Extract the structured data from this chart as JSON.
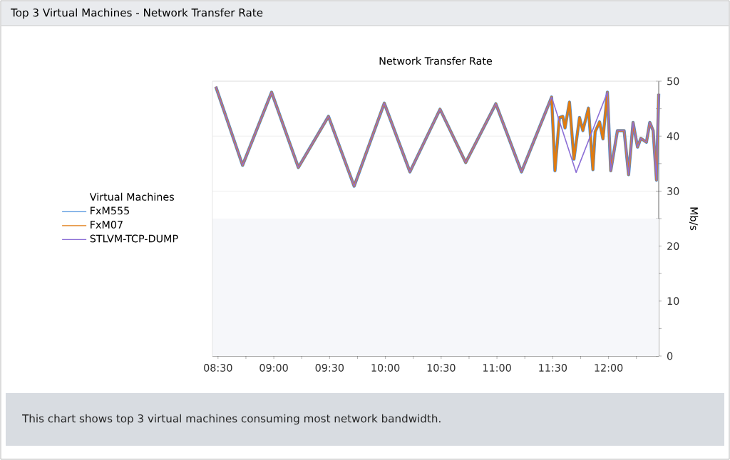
{
  "chart_data": {
    "type": "line",
    "title": "Top 3 Virtual Machines - Network Transfer Rate",
    "subtitle": "Network Transfer Rate",
    "ylabel": "Mb/s",
    "legend_title": "Virtual Machines",
    "legend": "left",
    "grid": "y",
    "annotations": [
      "This chart shows top 3 virtual machines consuming most network bandwidth."
    ],
    "xlim": [
      8.45,
      12.45
    ],
    "xticks": [
      {
        "value": 8.5,
        "label": "08:30"
      },
      {
        "value": 8.75,
        "label": null
      },
      {
        "value": 9,
        "label": "09:00"
      },
      {
        "value": 9.25,
        "label": null
      },
      {
        "value": 9.5,
        "label": "09:30"
      },
      {
        "value": 9.75,
        "label": null
      },
      {
        "value": 10,
        "label": "10:00"
      },
      {
        "value": 10.25,
        "label": null
      },
      {
        "value": 10.5,
        "label": "10:30"
      },
      {
        "value": 10.75,
        "label": null
      },
      {
        "value": 11,
        "label": "11:00"
      },
      {
        "value": 11.25,
        "label": null
      },
      {
        "value": 11.5,
        "label": "11:30"
      },
      {
        "value": 11.75,
        "label": null
      },
      {
        "value": 12,
        "label": "12:00"
      },
      {
        "value": 12.25,
        "label": null
      }
    ],
    "ylim": [
      0,
      50
    ],
    "yticks": [
      0,
      {
        "value": 5,
        "label": null
      },
      10,
      {
        "value": 15,
        "label": null
      },
      20,
      {
        "value": 25,
        "label": null
      },
      30,
      {
        "value": 35,
        "label": null
      },
      40,
      {
        "value": 45,
        "label": null
      },
      50
    ],
    "bands": [
      {
        "axis": "y",
        "from": 0,
        "to": 25,
        "color": "#f6f7fa"
      }
    ],
    "series": [
      {
        "name": "FxM555",
        "color": "#4a8fdc",
        "x": [
          8.48,
          8.72,
          8.98,
          9.22,
          9.49,
          9.72,
          9.99,
          10.22,
          10.49,
          10.72,
          10.99,
          11.22,
          11.49,
          11.52,
          11.56,
          11.59,
          11.61,
          11.65,
          11.69,
          11.74,
          11.77,
          11.82,
          11.86,
          11.88,
          11.92,
          11.95,
          11.99,
          12.02,
          12.08,
          12.14,
          12.18,
          12.22,
          12.26,
          12.29,
          12.34,
          12.37,
          12.4,
          12.43,
          12.45
        ],
        "values": [
          49,
          34.7,
          48,
          34.3,
          43.6,
          30.9,
          46,
          33.5,
          44.9,
          35.2,
          45.9,
          33.5,
          47.1,
          33.7,
          43.4,
          43.6,
          41.5,
          46.2,
          35.8,
          43.4,
          41,
          45.1,
          33.9,
          40.8,
          42.6,
          39.5,
          48,
          33.7,
          41,
          41,
          33,
          42.5,
          38,
          39.6,
          38.9,
          42.5,
          41,
          32,
          47.7
        ]
      },
      {
        "name": "FxM07",
        "color": "#e07b10",
        "x": [
          8.48,
          8.72,
          8.98,
          9.22,
          9.49,
          9.72,
          9.99,
          10.22,
          10.49,
          10.72,
          10.99,
          11.22,
          11.49,
          11.52,
          11.56,
          11.59,
          11.61,
          11.65,
          11.69,
          11.74,
          11.77,
          11.82,
          11.86,
          11.88,
          11.92,
          11.95,
          11.99,
          12.02,
          12.08,
          12.14,
          12.18,
          12.22,
          12.26,
          12.29,
          12.34,
          12.37,
          12.4,
          12.43,
          12.45
        ],
        "values": [
          49,
          34.7,
          48,
          34.3,
          43.6,
          30.9,
          46,
          33.5,
          44.9,
          35.2,
          45.9,
          33.5,
          47.1,
          33.7,
          43.4,
          43.6,
          41.5,
          46.2,
          35.8,
          43.4,
          41,
          45.1,
          33.9,
          40.8,
          42.6,
          39.5,
          48,
          33.7,
          41,
          41,
          33,
          42.5,
          38,
          39.6,
          38.9,
          42.5,
          41,
          32,
          47.7
        ]
      },
      {
        "name": "STLVM-TCP-DUMP",
        "color": "#8c6fd6",
        "x": [
          8.48,
          8.72,
          8.98,
          9.22,
          9.49,
          9.72,
          9.99,
          10.22,
          10.49,
          10.72,
          10.99,
          11.22,
          11.49,
          11.71,
          11.99,
          12.02,
          12.08,
          12.14,
          12.18,
          12.22,
          12.26,
          12.29,
          12.34,
          12.37,
          12.4,
          12.43,
          12.45
        ],
        "values": [
          49,
          34.7,
          48,
          34.3,
          43.6,
          30.9,
          46,
          33.5,
          44.9,
          35.2,
          45.9,
          33.5,
          47.1,
          33.4,
          48,
          33.7,
          41,
          41,
          33,
          42.5,
          38,
          39.6,
          38.9,
          42.5,
          41,
          32,
          47.7
        ]
      }
    ]
  }
}
